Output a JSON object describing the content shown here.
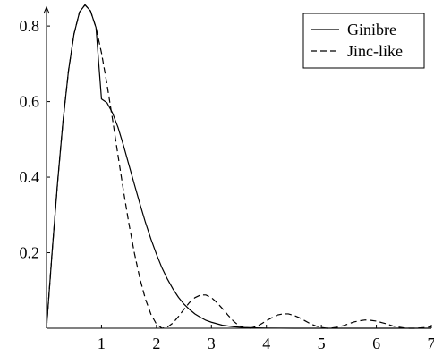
{
  "chart_data": {
    "type": "line",
    "xlim": [
      0,
      7
    ],
    "ylim": [
      0,
      0.85
    ],
    "x_ticks": [
      1,
      2,
      3,
      4,
      5,
      6,
      7
    ],
    "x_tick_labels": [
      "1",
      "2",
      "3",
      "4",
      "5",
      "6",
      "7"
    ],
    "y_ticks": [
      0.2,
      0.4,
      0.6,
      0.8
    ],
    "y_tick_labels": [
      "0.2",
      "0.4",
      "0.6",
      "0.8"
    ],
    "grid": false,
    "legend_position": "top-right",
    "series": [
      {
        "name": "Ginibre",
        "style": "solid",
        "color": "#000000",
        "x": [
          0,
          0.1,
          0.2,
          0.3,
          0.4,
          0.5,
          0.6,
          0.7,
          0.8,
          0.9,
          1.0,
          1.1,
          1.2,
          1.3,
          1.4,
          1.5,
          1.6,
          1.7,
          1.8,
          1.9,
          2.0,
          2.1,
          2.2,
          2.3,
          2.4,
          2.5,
          2.6,
          2.7,
          2.8,
          2.9,
          3.0,
          3.2,
          3.4,
          3.6,
          3.8,
          4.0,
          4.5,
          5.0,
          5.5,
          6.0,
          6.5,
          7.0
        ],
        "y": [
          0,
          0.198,
          0.384,
          0.548,
          0.682,
          0.779,
          0.837,
          0.856,
          0.84,
          0.796,
          0.607,
          0.597,
          0.57,
          0.532,
          0.484,
          0.432,
          0.38,
          0.329,
          0.28,
          0.236,
          0.196,
          0.16,
          0.13,
          0.104,
          0.082,
          0.064,
          0.05,
          0.038,
          0.029,
          0.021,
          0.016,
          0.008,
          0.004,
          0.002,
          0.001,
          0.0004,
          0.0,
          0.0,
          0.0,
          0.0,
          0.0,
          0.0
        ]
      },
      {
        "name": "Jinc-like",
        "style": "dashed",
        "color": "#000000",
        "x": [
          0,
          0.1,
          0.2,
          0.3,
          0.4,
          0.5,
          0.6,
          0.7,
          0.8,
          0.9,
          1.0,
          1.1,
          1.2,
          1.3,
          1.4,
          1.5,
          1.6,
          1.7,
          1.8,
          1.9,
          2.0,
          2.1,
          2.2,
          2.3,
          2.4,
          2.5,
          2.6,
          2.7,
          2.8,
          2.9,
          3.0,
          3.1,
          3.2,
          3.3,
          3.4,
          3.5,
          3.6,
          3.7,
          3.8,
          3.9,
          4.0,
          4.1,
          4.2,
          4.3,
          4.4,
          4.5,
          4.6,
          4.7,
          4.8,
          4.9,
          5.0,
          5.1,
          5.2,
          5.3,
          5.4,
          5.5,
          5.6,
          5.7,
          5.8,
          5.9,
          6.0,
          6.1,
          6.2,
          6.3,
          6.4,
          6.5,
          6.6,
          6.7,
          6.8,
          6.9,
          7.0
        ],
        "y": [
          0,
          0.198,
          0.384,
          0.548,
          0.682,
          0.779,
          0.837,
          0.856,
          0.84,
          0.796,
          0.729,
          0.646,
          0.554,
          0.458,
          0.364,
          0.276,
          0.198,
          0.131,
          0.077,
          0.037,
          0.011,
          0.0,
          0.003,
          0.014,
          0.031,
          0.05,
          0.068,
          0.081,
          0.088,
          0.088,
          0.081,
          0.068,
          0.052,
          0.035,
          0.019,
          0.007,
          0.001,
          0.0,
          0.004,
          0.011,
          0.02,
          0.028,
          0.035,
          0.038,
          0.038,
          0.034,
          0.028,
          0.02,
          0.012,
          0.006,
          0.002,
          0.0,
          0.001,
          0.003,
          0.007,
          0.012,
          0.017,
          0.02,
          0.022,
          0.021,
          0.019,
          0.015,
          0.011,
          0.006,
          0.003,
          0.001,
          0.0,
          0.0,
          0.001,
          0.002,
          0.004
        ]
      }
    ]
  }
}
